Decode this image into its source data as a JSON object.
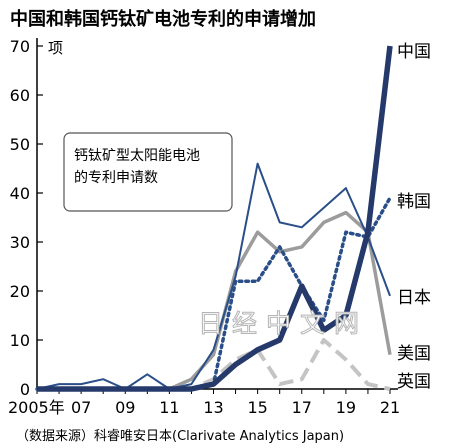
{
  "chart_data": {
    "type": "line",
    "title": "中国和韩国钙钛矿电池专利的申请增加",
    "ylabel_unit": "项",
    "annotation": "钙钛矿型太阳能电池\n的专利申请数",
    "source": "（数据来源）科睿唯安日本(Clarivate Analytics Japan)",
    "watermark": "日经中文网",
    "xlim": [
      2005,
      2021
    ],
    "ylim": [
      0,
      70
    ],
    "y_ticks": [
      0,
      10,
      20,
      30,
      40,
      50,
      60,
      70
    ],
    "x_ticks": [
      {
        "value": 2005,
        "label": "2005年"
      },
      {
        "value": 2007,
        "label": "07"
      },
      {
        "value": 2009,
        "label": "09"
      },
      {
        "value": 2011,
        "label": "11"
      },
      {
        "value": 2013,
        "label": "13"
      },
      {
        "value": 2015,
        "label": "15"
      },
      {
        "value": 2017,
        "label": "17"
      },
      {
        "value": 2019,
        "label": "19"
      },
      {
        "value": 2021,
        "label": "21"
      }
    ],
    "x": [
      2005,
      2006,
      2007,
      2008,
      2009,
      2010,
      2011,
      2012,
      2013,
      2014,
      2015,
      2016,
      2017,
      2018,
      2019,
      2020,
      2021
    ],
    "series": [
      {
        "name": "英国",
        "color": "#c4c4c4",
        "style": "dashed",
        "width": 4,
        "values": [
          0,
          0,
          0,
          0,
          0,
          0,
          0,
          0,
          2,
          6,
          8,
          1,
          2,
          10,
          6,
          1,
          0
        ]
      },
      {
        "name": "美国",
        "color": "#9c9c9c",
        "style": "solid",
        "width": 3.5,
        "values": [
          0,
          0,
          0,
          0,
          0,
          0,
          0,
          2,
          7,
          24,
          32,
          28,
          29,
          34,
          36,
          32,
          7
        ]
      },
      {
        "name": "日本",
        "color": "#2a4f88",
        "style": "solid",
        "width": 2,
        "values": [
          0,
          1,
          1,
          2,
          0,
          3,
          0,
          1,
          8,
          23,
          46,
          34,
          33,
          37,
          41,
          31,
          19
        ]
      },
      {
        "name": "韩国",
        "color": "#2a4f88",
        "style": "dotted",
        "width": 3.5,
        "values": [
          0,
          0,
          0,
          0,
          0,
          0,
          0,
          0,
          1,
          22,
          22,
          29,
          21,
          14,
          32,
          31,
          39
        ]
      },
      {
        "name": "中国",
        "color": "#25396a",
        "style": "solid",
        "width": 5.5,
        "values": [
          0,
          0,
          0,
          0,
          0,
          0,
          0,
          0,
          1,
          5,
          8,
          10,
          21,
          12,
          15,
          32,
          70
        ]
      }
    ],
    "grid": false,
    "legend": "labels at the right end of each line"
  }
}
